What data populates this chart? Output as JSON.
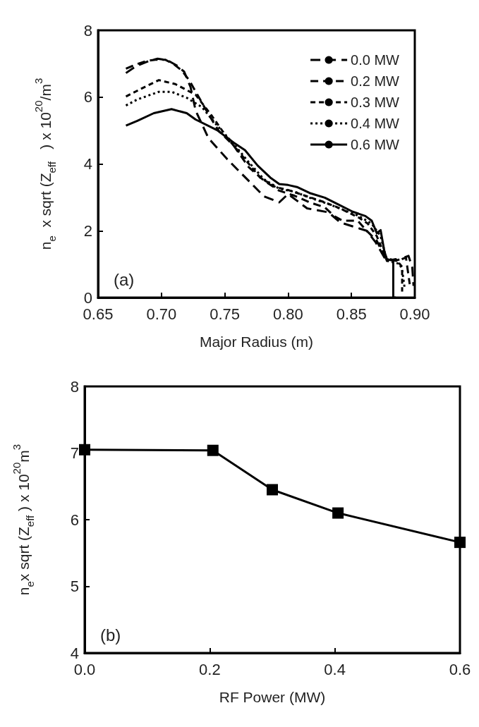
{
  "chart_data": [
    {
      "type": "line",
      "xlabel": "Major Radius (m)",
      "ylabel": "n$_{e}$  x sqrt (Z$_{eff}$   ) x 10$^{20}$/m$^{3}$",
      "annotations": [
        "(a)"
      ],
      "xlim": [
        0.65,
        0.9
      ],
      "xticks": [
        {
          "value": 0.65,
          "label": "0.65"
        },
        {
          "value": 0.7,
          "label": "0.70"
        },
        {
          "value": 0.75,
          "label": "0.75"
        },
        {
          "value": 0.8,
          "label": "0.80"
        },
        {
          "value": 0.85,
          "label": "0.85"
        },
        {
          "value": 0.9,
          "label": "0.90"
        }
      ],
      "ylim": [
        0,
        8
      ],
      "yticks": [
        0,
        2,
        4,
        6,
        8
      ],
      "grid": false,
      "legend": "top right",
      "marker": "none",
      "series": [
        {
          "name": "0.0 MW",
          "color": "#000000",
          "line_style": "dashed",
          "x": [
            0.672,
            0.68,
            0.69,
            0.697,
            0.705,
            0.712,
            0.718,
            0.723,
            0.727,
            0.737,
            0.752,
            0.769,
            0.781,
            0.793,
            0.8,
            0.815,
            0.832,
            0.841,
            0.862,
            0.869,
            0.876,
            0.885,
            0.895,
            0.898,
            0.899
          ],
          "values": [
            6.72,
            6.93,
            7.08,
            7.15,
            7.1,
            6.95,
            6.76,
            6.3,
            5.6,
            4.78,
            4.14,
            3.49,
            3.03,
            2.85,
            3.1,
            2.67,
            2.55,
            2.25,
            2.0,
            1.66,
            1.2,
            1.1,
            1.25,
            0.9,
            0.35
          ]
        },
        {
          "name": "0.2 MW",
          "color": "#000000",
          "line_style": "dashed",
          "x": [
            0.672,
            0.68,
            0.688,
            0.695,
            0.703,
            0.71,
            0.716,
            0.722,
            0.728,
            0.737,
            0.745,
            0.757,
            0.769,
            0.781,
            0.793,
            0.805,
            0.817,
            0.829,
            0.836,
            0.843,
            0.855,
            0.862,
            0.87,
            0.877,
            0.887,
            0.893,
            0.896
          ],
          "values": [
            6.85,
            6.98,
            7.08,
            7.12,
            7.12,
            6.98,
            6.8,
            6.5,
            6.1,
            5.5,
            5.0,
            4.55,
            3.9,
            3.5,
            3.2,
            3.05,
            2.85,
            2.7,
            2.45,
            2.3,
            2.3,
            2.0,
            1.7,
            1.15,
            1.1,
            1.2,
            0.4
          ]
        },
        {
          "name": "0.3 MW",
          "color": "#000000",
          "line_style": "dashed",
          "x": [
            0.672,
            0.684,
            0.698,
            0.711,
            0.727,
            0.74,
            0.752,
            0.766,
            0.778,
            0.79,
            0.8,
            0.815,
            0.829,
            0.841,
            0.856,
            0.863,
            0.87,
            0.878,
            0.885,
            0.89,
            0.89
          ],
          "values": [
            6.02,
            6.25,
            6.51,
            6.39,
            6.07,
            5.43,
            4.78,
            4.14,
            3.59,
            3.31,
            3.22,
            3.03,
            2.85,
            2.67,
            2.39,
            2.21,
            1.84,
            1.1,
            1.15,
            0.92,
            0.18
          ]
        },
        {
          "name": "0.4 MW",
          "color": "#000000",
          "line_style": "dotted",
          "x": [
            0.672,
            0.681,
            0.698,
            0.708,
            0.72,
            0.732,
            0.744,
            0.757,
            0.769,
            0.781,
            0.793,
            0.805,
            0.817,
            0.832,
            0.844,
            0.856,
            0.866,
            0.873,
            0.878,
            0.888,
            0.89,
            0.892
          ],
          "values": [
            5.75,
            5.93,
            6.16,
            6.16,
            5.98,
            5.7,
            5.15,
            4.6,
            4.05,
            3.54,
            3.26,
            3.17,
            2.99,
            2.8,
            2.62,
            2.44,
            2.21,
            1.84,
            1.1,
            1.01,
            0.83,
            0.28
          ]
        },
        {
          "name": "0.6 MW",
          "color": "#000000",
          "line_style": "solid",
          "x": [
            0.672,
            0.681,
            0.694,
            0.708,
            0.72,
            0.727,
            0.744,
            0.757,
            0.766,
            0.776,
            0.786,
            0.793,
            0.8,
            0.807,
            0.817,
            0.829,
            0.839,
            0.851,
            0.861,
            0.866,
            0.87,
            0.873,
            0.876,
            0.878,
            0.883,
            0.883,
            0.885
          ],
          "values": [
            5.15,
            5.29,
            5.52,
            5.64,
            5.52,
            5.33,
            5.01,
            4.64,
            4.41,
            3.95,
            3.59,
            3.4,
            3.37,
            3.31,
            3.13,
            2.99,
            2.8,
            2.57,
            2.44,
            2.3,
            1.93,
            2.02,
            1.38,
            1.15,
            1.1,
            0,
            0
          ]
        }
      ]
    },
    {
      "type": "line",
      "xlabel": "RF Power (MW)",
      "ylabel": "n$_{e}$x sqrt (Z$_{eff}$ ) x 10$^{20}$m$^{3}$",
      "annotations": [
        "(b)"
      ],
      "xlim": [
        0,
        0.6
      ],
      "xticks": [
        {
          "value": 0,
          "label": "0.0"
        },
        {
          "value": 0.2,
          "label": "0.2"
        },
        {
          "value": 0.4,
          "label": "0.4"
        },
        {
          "value": 0.6,
          "label": "0.6"
        }
      ],
      "ylim": [
        4,
        8
      ],
      "yticks": [
        4,
        5,
        6,
        7,
        8
      ],
      "grid": false,
      "marker": "square",
      "line_style": "solid",
      "series": [
        {
          "color": "#000000",
          "x": [
            0,
            0.205,
            0.3,
            0.405,
            0.6
          ],
          "values": [
            7.05,
            7.04,
            6.45,
            6.1,
            5.66
          ]
        }
      ]
    }
  ]
}
